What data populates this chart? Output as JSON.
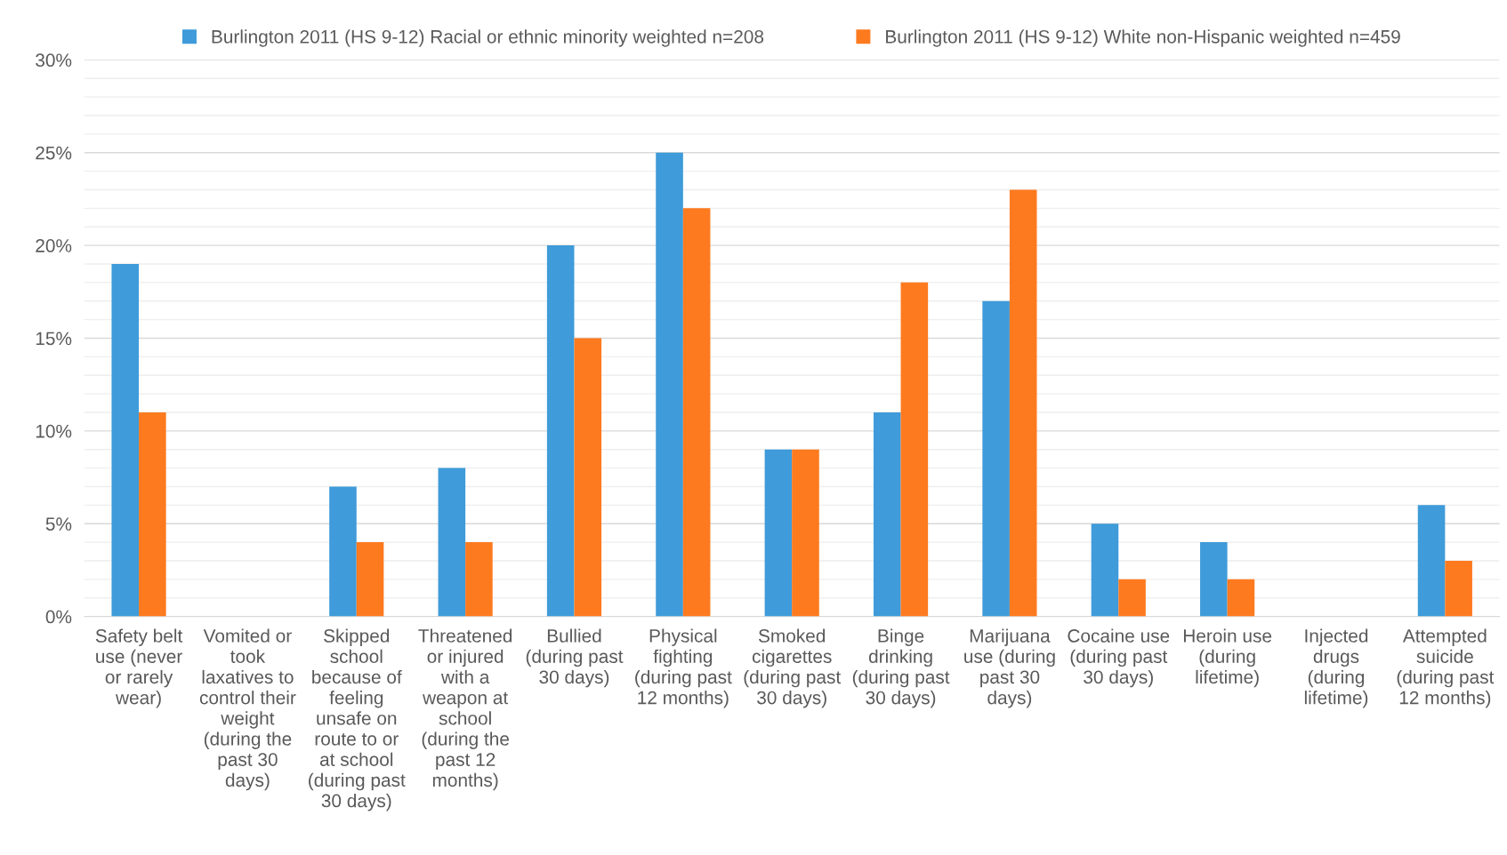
{
  "chart_data": {
    "type": "bar",
    "categories": [
      "Safety belt\nuse (never\nor rarely\nwear)",
      "Vomited or\ntook\nlaxatives to\ncontrol their\nweight\n(during the\npast 30\ndays)",
      "Skipped\nschool\nbecause of\nfeeling\nunsafe on\nroute to or\nat school\n(during past\n30 days)",
      "Threatened\nor injured\nwith a\nweapon at\nschool\n(during the\npast 12\nmonths)",
      "Bullied\n(during past\n30 days)",
      "Physical\nfighting\n(during past\n12 months)",
      "Smoked\ncigarettes\n(during past\n30 days)",
      "Binge\ndrinking\n(during past\n30 days)",
      "Marijuana\nuse (during\npast 30\ndays)",
      "Cocaine use\n(during past\n30 days)",
      "Heroin use\n(during\nlifetime)",
      "Injected\ndrugs\n(during\nlifetime)",
      "Attempted\nsuicide\n(during past\n12 months)"
    ],
    "series": [
      {
        "name": "Burlington 2011 (HS 9-12) Racial or ethnic minority weighted n=208",
        "color": "#3f9bd9",
        "values": [
          19,
          null,
          7,
          8,
          20,
          25,
          9,
          11,
          17,
          5,
          4,
          null,
          6
        ]
      },
      {
        "name": "Burlington 2011 (HS 9-12) White non-Hispanic weighted n=459",
        "color": "#fe7a1f",
        "values": [
          11,
          null,
          4,
          4,
          15,
          22,
          9,
          18,
          23,
          2,
          2,
          null,
          3
        ]
      }
    ],
    "ylim": [
      0,
      30
    ],
    "yticks": [
      {
        "value": 0,
        "label": "0%"
      },
      {
        "value": 1,
        "label": null
      },
      {
        "value": 2,
        "label": null
      },
      {
        "value": 3,
        "label": null
      },
      {
        "value": 4,
        "label": null
      },
      {
        "value": 5,
        "label": "5%"
      },
      {
        "value": 6,
        "label": null
      },
      {
        "value": 7,
        "label": null
      },
      {
        "value": 8,
        "label": null
      },
      {
        "value": 9,
        "label": null
      },
      {
        "value": 10,
        "label": "10%"
      },
      {
        "value": 11,
        "label": null
      },
      {
        "value": 12,
        "label": null
      },
      {
        "value": 13,
        "label": null
      },
      {
        "value": 14,
        "label": null
      },
      {
        "value": 15,
        "label": "15%"
      },
      {
        "value": 16,
        "label": null
      },
      {
        "value": 17,
        "label": null
      },
      {
        "value": 18,
        "label": null
      },
      {
        "value": 19,
        "label": null
      },
      {
        "value": 20,
        "label": "20%"
      },
      {
        "value": 21,
        "label": null
      },
      {
        "value": 22,
        "label": null
      },
      {
        "value": 23,
        "label": null
      },
      {
        "value": 24,
        "label": null
      },
      {
        "value": 25,
        "label": "25%"
      },
      {
        "value": 26,
        "label": null
      },
      {
        "value": 27,
        "label": null
      },
      {
        "value": 28,
        "label": null
      },
      {
        "value": 29,
        "label": null
      },
      {
        "value": 30,
        "label": "30%"
      }
    ],
    "grid": "y",
    "legend": "top"
  }
}
